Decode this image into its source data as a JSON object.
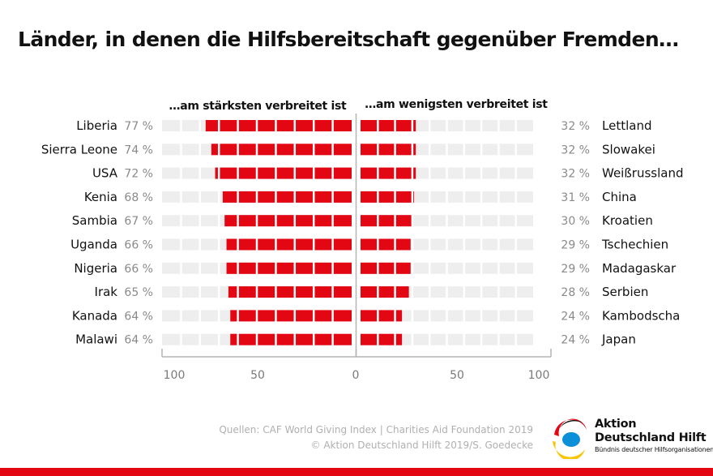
{
  "title": "Länder, in denen die Hilfsbereitschaft gegenüber Fremden…",
  "chart_data": {
    "type": "bar",
    "left_panel": {
      "subtitle": "…am stärksten verbreitet ist",
      "categories": [
        "Liberia",
        "Sierra Leone",
        "USA",
        "Kenia",
        "Sambia",
        "Uganda",
        "Nigeria",
        "Irak",
        "Kanada",
        "Malawi"
      ],
      "values": [
        77,
        74,
        72,
        68,
        67,
        66,
        66,
        65,
        64,
        64
      ],
      "labels": [
        "77 %",
        "74 %",
        "72 %",
        "68 %",
        "67 %",
        "66 %",
        "66 %",
        "65 %",
        "64 %",
        "64 %"
      ]
    },
    "right_panel": {
      "subtitle": "…am wenigsten verbreitet ist",
      "categories": [
        "Lettland",
        "Slowakei",
        "Weißrussland",
        "China",
        "Kroatien",
        "Tschechien",
        "Madagaskar",
        "Serbien",
        "Kambodscha",
        "Japan"
      ],
      "values": [
        32,
        32,
        32,
        31,
        30,
        29,
        29,
        28,
        24,
        24
      ],
      "labels": [
        "32 %",
        "32 %",
        "32 %",
        "31 %",
        "30 %",
        "29 %",
        "29 %",
        "28 %",
        "24 %",
        "24 %"
      ]
    },
    "axis_ticks_left": [
      "100",
      "50",
      "0"
    ],
    "axis_ticks_right": [
      "50",
      "100"
    ],
    "xlim": [
      0,
      100
    ],
    "colors": {
      "bar": "#e30613",
      "track": "#eeeeee",
      "axis": "#b4b4b4"
    }
  },
  "footer": {
    "source_line1": "Quellen: CAF World Giving Index | Charities Aid Foundation 2019",
    "source_line2": "© Aktion Deutschland Hilft 2019/S. Goedecke"
  },
  "logo": {
    "line1": "Aktion",
    "line2": "Deutschland Hilft",
    "line3": "Bündnis deutscher Hilfsorganisationen",
    "colors": {
      "red": "#e30613",
      "yellow": "#f7c600",
      "blue": "#0a8fd8",
      "black": "#111111"
    }
  },
  "brand_stripe_color": "#e30613"
}
